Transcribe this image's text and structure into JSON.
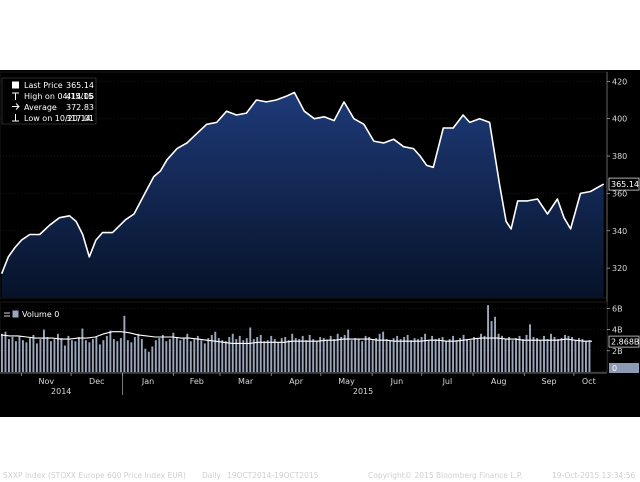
{
  "chart_data": [
    {
      "type": "area",
      "title": "SXXP Index (STOXX Europe 600 Price Index EUR)",
      "frequency": "Daily",
      "period": "19OCT2014-19OCT2015",
      "x": [
        "2014-10-20",
        "2014-10-24",
        "2014-10-28",
        "2014-11-01",
        "2014-11-06",
        "2014-11-12",
        "2014-11-18",
        "2014-11-24",
        "2014-11-30",
        "2014-12-04",
        "2014-12-08",
        "2014-12-12",
        "2014-12-16",
        "2014-12-20",
        "2014-12-26",
        "2015-01-03",
        "2015-01-08",
        "2015-01-14",
        "2015-01-20",
        "2015-01-24",
        "2015-01-28",
        "2015-02-03",
        "2015-02-09",
        "2015-02-15",
        "2015-02-21",
        "2015-02-27",
        "2015-03-05",
        "2015-03-11",
        "2015-03-17",
        "2015-03-23",
        "2015-03-29",
        "2015-04-04",
        "2015-04-10",
        "2015-04-15",
        "2015-04-21",
        "2015-04-27",
        "2015-05-03",
        "2015-05-09",
        "2015-05-15",
        "2015-05-21",
        "2015-05-27",
        "2015-06-02",
        "2015-06-08",
        "2015-06-14",
        "2015-06-20",
        "2015-06-26",
        "2015-06-30",
        "2015-07-04",
        "2015-07-08",
        "2015-07-14",
        "2015-07-20",
        "2015-07-26",
        "2015-07-30",
        "2015-08-05",
        "2015-08-11",
        "2015-08-17",
        "2015-08-21",
        "2015-08-24",
        "2015-08-28",
        "2015-09-03",
        "2015-09-09",
        "2015-09-15",
        "2015-09-21",
        "2015-09-25",
        "2015-09-29",
        "2015-10-05",
        "2015-10-11",
        "2015-10-19"
      ],
      "y": [
        317,
        326,
        331,
        335,
        338,
        338,
        343,
        347,
        348,
        345,
        338,
        326,
        335,
        339,
        339,
        346,
        349,
        359,
        369,
        372,
        378,
        384,
        387,
        392,
        397,
        398,
        404,
        402,
        403,
        410,
        409,
        410,
        412,
        414,
        404,
        400,
        401,
        399,
        409,
        400,
        397,
        388,
        387,
        389,
        385,
        384,
        380,
        375,
        374,
        395,
        395,
        402,
        398,
        400,
        398,
        365,
        345,
        341,
        356,
        356,
        357,
        349,
        357,
        347,
        341,
        360,
        361,
        365
      ],
      "ylim": [
        304,
        425
      ],
      "yticks": [
        320,
        340,
        360,
        380,
        400,
        420
      ],
      "last_price_label": "365.14",
      "legend": [
        {
          "label": "Last Price",
          "value": "365.14"
        },
        {
          "label": "High on 04/15/15",
          "value": "414.06"
        },
        {
          "label": "Average",
          "value": "372.83"
        },
        {
          "label": "Low on 10/20/14",
          "value": "317.01"
        }
      ],
      "colors": {
        "line": "#ffffff",
        "fill_top": "#1e3a78",
        "fill_bottom": "#061228",
        "background": "#000000"
      }
    },
    {
      "type": "bar",
      "title": "Volume 0",
      "ylim_billions": [
        0,
        6.6
      ],
      "yticks": [
        "2B",
        "4B",
        "6B"
      ],
      "last_value_label": "2.868B",
      "volume_bars_billions": [
        3.6,
        3.8,
        3.1,
        3.3,
        2.9,
        3.4,
        3.0,
        2.8,
        3.2,
        3.5,
        2.7,
        3.1,
        4.0,
        3.3,
        2.9,
        3.1,
        3.6,
        3.2,
        2.5,
        3.4,
        3.0,
        2.9,
        3.3,
        4.1,
        3.0,
        2.8,
        3.1,
        3.3,
        2.6,
        3.0,
        3.4,
        3.9,
        3.1,
        2.9,
        3.2,
        5.3,
        3.0,
        2.8,
        3.3,
        3.6,
        3.1,
        2.2,
        1.9,
        2.4,
        3.0,
        3.2,
        3.5,
        2.9,
        3.1,
        3.7,
        3.3,
        3.0,
        3.2,
        3.6,
        2.9,
        3.1,
        3.4,
        3.0,
        2.7,
        3.2,
        3.5,
        3.8,
        3.2,
        3.0,
        2.9,
        3.3,
        3.6,
        3.1,
        3.4,
        3.0,
        3.2,
        4.2,
        3.1,
        3.3,
        3.5,
        2.9,
        3.0,
        3.4,
        3.1,
        2.8,
        3.2,
        3.3,
        3.0,
        3.6,
        3.2,
        3.1,
        3.4,
        3.0,
        3.5,
        3.1,
        2.9,
        3.3,
        3.2,
        3.0,
        3.4,
        3.1,
        3.6,
        3.3,
        3.5,
        4.0,
        3.0,
        3.2,
        3.1,
        2.9,
        3.4,
        3.3,
        3.0,
        3.2,
        3.6,
        3.8,
        3.1,
        3.0,
        3.2,
        3.4,
        3.1,
        3.3,
        3.5,
        3.0,
        3.2,
        3.1,
        3.3,
        3.6,
        3.0,
        3.4,
        3.1,
        3.2,
        3.3,
        2.9,
        3.1,
        3.4,
        3.0,
        3.2,
        3.5,
        3.1,
        3.0,
        3.3,
        3.2,
        3.6,
        3.4,
        6.3,
        4.8,
        5.2,
        3.6,
        3.4,
        3.1,
        3.3,
        3.0,
        3.2,
        3.4,
        3.1,
        3.5,
        4.5,
        3.3,
        3.2,
        3.0,
        3.4,
        3.1,
        3.6,
        3.3,
        3.1,
        3.2,
        3.5,
        3.4,
        3.3,
        3.0,
        3.2,
        3.1,
        2.9,
        3.0
      ],
      "average_line_billions": [
        3.5,
        3.4,
        3.4,
        3.3,
        3.2,
        3.2,
        3.2,
        3.1,
        3.1,
        3.2,
        3.2,
        3.3,
        3.6,
        3.8,
        3.8,
        3.7,
        3.5,
        3.4,
        3.3,
        3.3,
        3.3,
        3.2,
        3.2,
        3.1,
        3.0,
        2.9,
        2.8,
        2.7,
        2.7,
        2.7,
        2.8,
        2.8,
        2.8,
        2.8,
        2.9,
        2.9,
        2.9,
        2.9,
        3.0,
        3.0,
        3.1,
        3.1,
        3.1,
        3.1,
        3.0,
        3.0,
        2.9,
        2.9,
        2.9,
        2.9,
        3.0,
        3.0,
        2.9,
        2.9,
        3.0,
        3.1,
        3.2,
        3.2,
        3.2,
        3.1,
        3.1,
        3.0,
        3.0,
        3.0,
        3.0,
        3.0,
        3.1,
        3.0,
        2.9,
        2.9
      ],
      "colors": {
        "bars": "#9aa6bc",
        "avg_line": "#ffffff"
      }
    }
  ],
  "x_axis": {
    "months": [
      "Nov",
      "Dec",
      "Jan",
      "Feb",
      "Mar",
      "Apr",
      "May",
      "Jun",
      "Jul",
      "Aug",
      "Sep",
      "Oct"
    ],
    "month_dates": [
      "2014-11-01",
      "2014-12-01",
      "2015-01-01",
      "2015-02-01",
      "2015-03-01",
      "2015-04-01",
      "2015-05-01",
      "2015-06-01",
      "2015-07-01",
      "2015-08-01",
      "2015-09-01",
      "2015-10-01"
    ],
    "years": [
      "2014",
      "2015"
    ]
  },
  "footer": {
    "index_label": "SXXP Index (STOXX Europe 600 Price Index EUR)",
    "frequency": "Daily",
    "period": "19OCT2014-19OCT2015",
    "copyright": "Copyright© 2015 Bloomberg Finance L.P.",
    "timestamp": "19-Oct-2015 13:34:56"
  }
}
